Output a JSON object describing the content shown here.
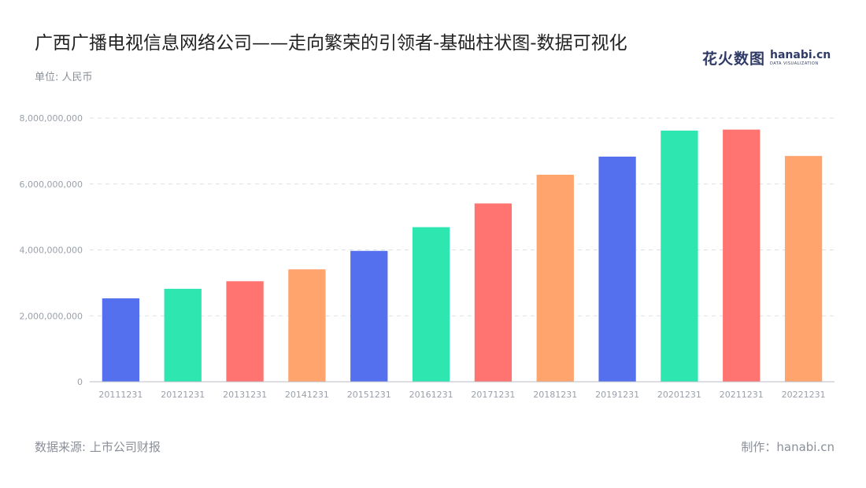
{
  "header": {
    "title": "广西广播电视信息网络公司——走向繁荣的引领者-基础柱状图-数据可视化",
    "unit": "单位: 人民币"
  },
  "logo": {
    "cn": "花火数图",
    "brand": "hanabi.cn",
    "tag": "DATA VISUALIZATION"
  },
  "footer": {
    "source": "数据来源: 上市公司财报",
    "credit": "制作：hanabi.cn"
  },
  "chart_data": {
    "type": "bar",
    "categories": [
      "20111231",
      "20121231",
      "20131231",
      "20141231",
      "20151231",
      "20161231",
      "20171231",
      "20181231",
      "20191231",
      "20201231",
      "20211231",
      "20221231"
    ],
    "values": [
      2530000000,
      2820000000,
      3050000000,
      3410000000,
      3970000000,
      4690000000,
      5410000000,
      6280000000,
      6830000000,
      7620000000,
      7650000000,
      6850000000
    ],
    "colors": [
      "#5470ee",
      "#2de6b0",
      "#ff7470",
      "#ffa46c",
      "#5470ee",
      "#2de6b0",
      "#ff7470",
      "#ffa46c",
      "#5470ee",
      "#2de6b0",
      "#ff7470",
      "#ffa46c"
    ],
    "ylim": [
      0,
      8000000000
    ],
    "yticks": [
      0,
      2000000000,
      4000000000,
      6000000000,
      8000000000
    ],
    "ytick_labels": [
      "0",
      "2,000,000,000",
      "4,000,000,000",
      "6,000,000,000",
      "8,000,000,000"
    ],
    "grid": true,
    "legend": "none"
  }
}
